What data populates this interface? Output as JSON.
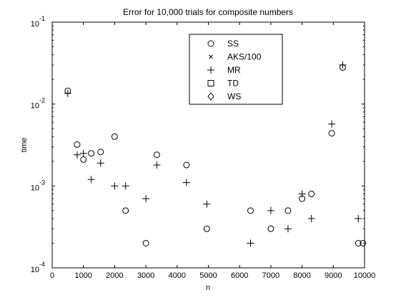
{
  "chart_data": {
    "type": "scatter",
    "title": "Error for 10,000 trials for composite numbers",
    "xlabel": "n",
    "ylabel": "time",
    "xlim": [
      0,
      10000
    ],
    "ylim": [
      0.0001,
      0.1
    ],
    "yscale": "log",
    "grid": false,
    "legend_position": "top-center",
    "x_ticks": [
      0,
      1000,
      2000,
      3000,
      4000,
      5000,
      6000,
      7000,
      8000,
      9000,
      10000
    ],
    "y_ticks": [
      {
        "value": 0.0001,
        "base": "10",
        "exp": "-4"
      },
      {
        "value": 0.001,
        "base": "10",
        "exp": "-3"
      },
      {
        "value": 0.01,
        "base": "10",
        "exp": "-2"
      },
      {
        "value": 0.1,
        "base": "10",
        "exp": "-1"
      }
    ],
    "series": [
      {
        "name": "SS",
        "marker": "circle",
        "points": [
          [
            500,
            0.0145
          ],
          [
            800,
            0.0032
          ],
          [
            1000,
            0.0021
          ],
          [
            1250,
            0.0025
          ],
          [
            1550,
            0.0026
          ],
          [
            2000,
            0.004
          ],
          [
            2350,
            0.0005
          ],
          [
            3000,
            0.0002
          ],
          [
            3350,
            0.0024
          ],
          [
            4300,
            0.0018
          ],
          [
            4950,
            0.0003
          ],
          [
            6350,
            0.0005
          ],
          [
            7000,
            0.0003
          ],
          [
            7550,
            0.0005
          ],
          [
            8000,
            0.0007
          ],
          [
            8300,
            0.0008
          ],
          [
            8950,
            0.0044
          ],
          [
            9300,
            0.028
          ],
          [
            9800,
            0.0002
          ],
          [
            9950,
            0.0002
          ]
        ]
      },
      {
        "name": "AKS/100",
        "marker": "x",
        "points": []
      },
      {
        "name": "MR",
        "marker": "plus",
        "points": [
          [
            500,
            0.0135
          ],
          [
            800,
            0.0024
          ],
          [
            1000,
            0.0025
          ],
          [
            1250,
            0.0012
          ],
          [
            1550,
            0.0019
          ],
          [
            2000,
            0.001
          ],
          [
            2350,
            0.001
          ],
          [
            3000,
            0.0007
          ],
          [
            3350,
            0.0018
          ],
          [
            4300,
            0.0011
          ],
          [
            4950,
            0.0006
          ],
          [
            6350,
            0.0002
          ],
          [
            7000,
            0.0005
          ],
          [
            7550,
            0.0003
          ],
          [
            8000,
            0.0008
          ],
          [
            8300,
            0.0004
          ],
          [
            8950,
            0.0057
          ],
          [
            9300,
            0.03
          ],
          [
            9800,
            0.0004
          ]
        ]
      },
      {
        "name": "TD",
        "marker": "square",
        "points": []
      },
      {
        "name": "WS",
        "marker": "diamond",
        "points": []
      }
    ]
  }
}
